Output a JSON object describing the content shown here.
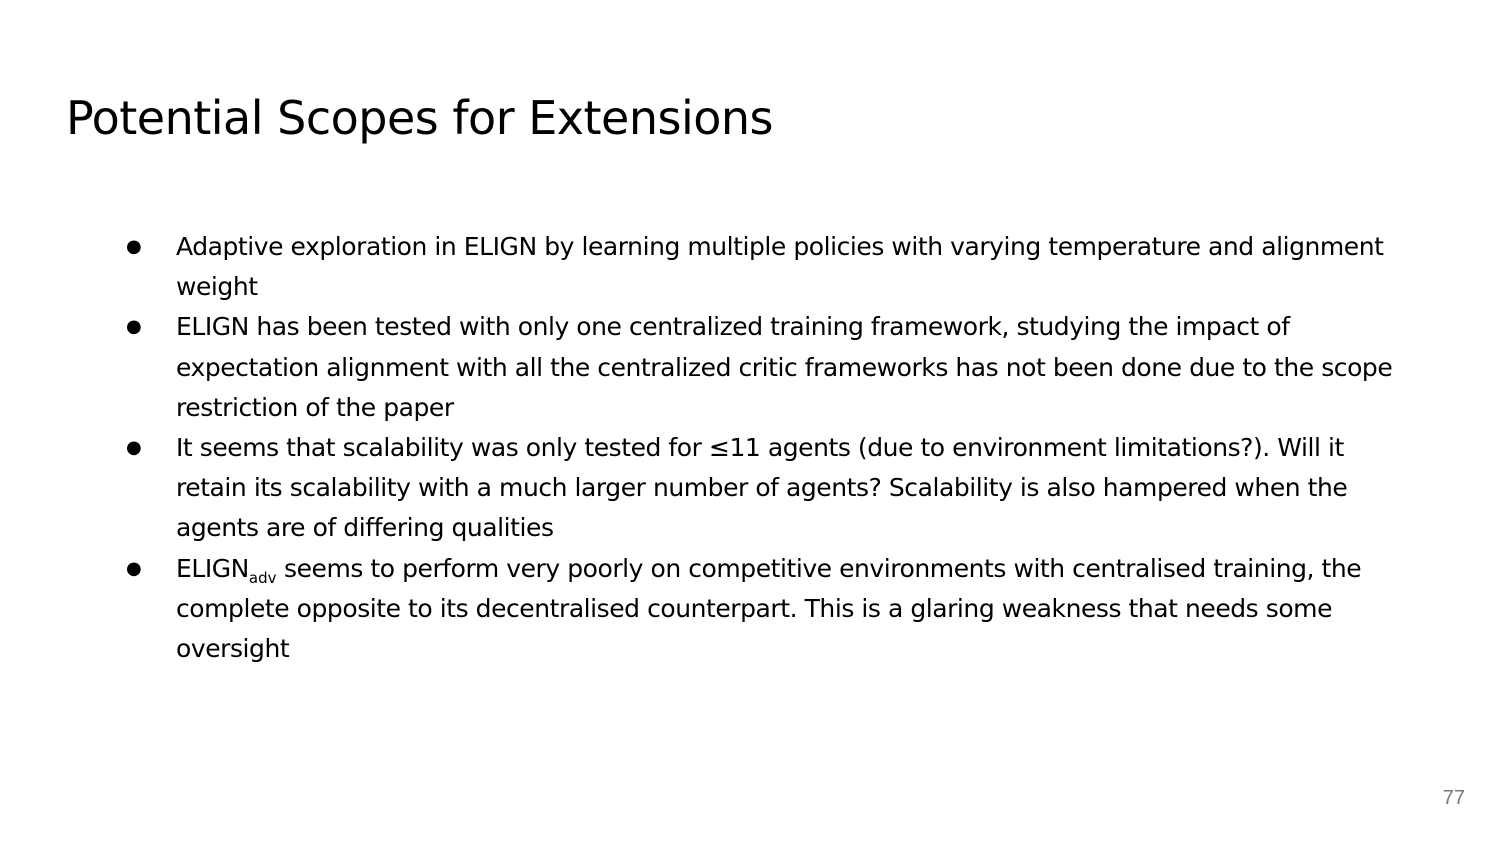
{
  "slide": {
    "title": "Potential Scopes for Extensions",
    "bullet_symbol": "●",
    "bullets": [
      {
        "text": "Adaptive exploration in ELIGN by learning multiple policies with varying temperature and alignment weight"
      },
      {
        "text": "ELIGN has been tested with only one centralized training framework, studying the impact of expectation alignment with all the centralized critic frameworks has not been done due to the scope restriction of the paper"
      },
      {
        "text": "It seems that scalability was only tested for ≤11 agents (due to environment limitations?). Will it retain its scalability with a much larger number of agents? Scalability is also hampered when the agents are of differing qualities"
      },
      {
        "text_base": "ELIGN",
        "text_subscript": "adv",
        "text_rest": " seems to perform very poorly on competitive environments with centralised training, the complete opposite to its decentralised counterpart. This is a glaring weakness that needs some oversight"
      }
    ],
    "page_number": "77"
  }
}
